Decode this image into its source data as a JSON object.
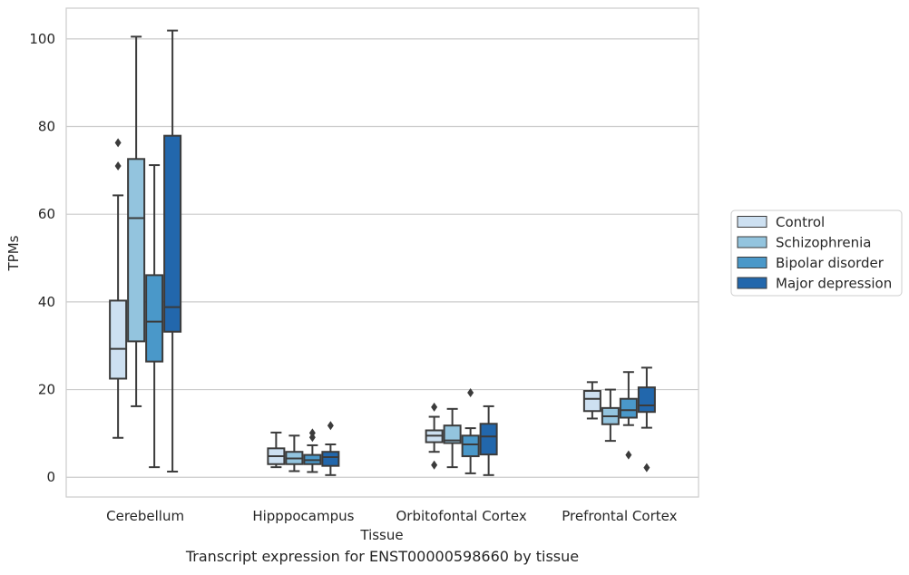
{
  "chart_data": {
    "type": "box",
    "caption": "Transcript expression for ENST00000598660 by tissue",
    "xlabel": "Tissue",
    "ylabel": "TPMs",
    "ylim": [
      -4.5,
      107
    ],
    "yticks": [
      0,
      20,
      40,
      60,
      80,
      100
    ],
    "grid": "horizontal",
    "legend_position": "right",
    "categories": [
      "Cerebellum",
      "Hipppocampus",
      "Orbitofontal Cortex",
      "Prefrontal Cortex"
    ],
    "series": [
      {
        "name": "Control",
        "color": "#cde0f1",
        "boxes": [
          {
            "whislo": 9,
            "q1": 22.5,
            "med": 29.3,
            "q3": 40.3,
            "whishi": 64.3,
            "fliers": [
              71,
              76.3
            ]
          },
          {
            "whislo": 2.3,
            "q1": 3,
            "med": 4.8,
            "q3": 6.6,
            "whishi": 10.2,
            "fliers": []
          },
          {
            "whislo": 5.8,
            "q1": 8,
            "med": 9.5,
            "q3": 10.7,
            "whishi": 13.8,
            "fliers": [
              2.8,
              16
            ]
          },
          {
            "whislo": 13.4,
            "q1": 15.1,
            "med": 17.9,
            "q3": 19.7,
            "whishi": 21.7,
            "fliers": []
          }
        ]
      },
      {
        "name": "Schizophrenia",
        "color": "#93c4de",
        "boxes": [
          {
            "whislo": 16.2,
            "q1": 31,
            "med": 59.1,
            "q3": 72.6,
            "whishi": 100.5,
            "fliers": []
          },
          {
            "whislo": 1.4,
            "q1": 3,
            "med": 4.3,
            "q3": 5.8,
            "whishi": 9.5,
            "fliers": []
          },
          {
            "whislo": 2.3,
            "q1": 7.8,
            "med": 8.4,
            "q3": 11.8,
            "whishi": 15.6,
            "fliers": []
          },
          {
            "whislo": 8.3,
            "q1": 12.1,
            "med": 13.9,
            "q3": 15.8,
            "whishi": 20,
            "fliers": []
          }
        ]
      },
      {
        "name": "Bipolar disorder",
        "color": "#4a98c9",
        "boxes": [
          {
            "whislo": 2.3,
            "q1": 26.4,
            "med": 35.5,
            "q3": 46.1,
            "whishi": 71.2,
            "fliers": []
          },
          {
            "whislo": 1.2,
            "q1": 3,
            "med": 3.9,
            "q3": 5.1,
            "whishi": 7.3,
            "fliers": [
              9.1,
              10.1
            ]
          },
          {
            "whislo": 0.9,
            "q1": 4.8,
            "med": 7.5,
            "q3": 9.5,
            "whishi": 11.2,
            "fliers": [
              19.3
            ]
          },
          {
            "whislo": 11.9,
            "q1": 13.6,
            "med": 15.3,
            "q3": 17.9,
            "whishi": 24,
            "fliers": [
              5.1
            ]
          }
        ]
      },
      {
        "name": "Major depression",
        "color": "#2267ac",
        "boxes": [
          {
            "whislo": 1.3,
            "q1": 33.2,
            "med": 38.8,
            "q3": 77.9,
            "whishi": 101.9,
            "fliers": []
          },
          {
            "whislo": 0.5,
            "q1": 2.6,
            "med": 4.6,
            "q3": 5.8,
            "whishi": 7.5,
            "fliers": [
              11.8
            ]
          },
          {
            "whislo": 0.5,
            "q1": 5.2,
            "med": 9.3,
            "q3": 12.2,
            "whishi": 16.2,
            "fliers": []
          },
          {
            "whislo": 11.3,
            "q1": 14.9,
            "med": 16.4,
            "q3": 20.5,
            "whishi": 25,
            "fliers": [
              2.2
            ]
          }
        ]
      }
    ]
  }
}
